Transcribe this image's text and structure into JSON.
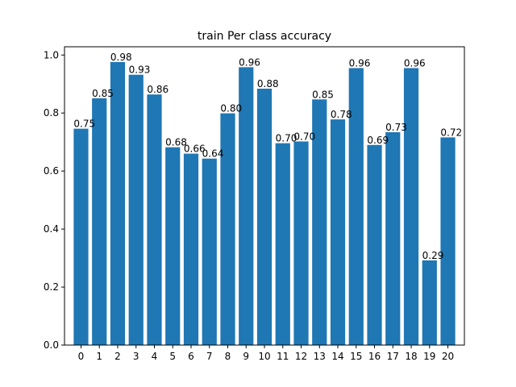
{
  "chart_data": {
    "type": "bar",
    "title": "train Per class accuracy",
    "xlabel": "",
    "ylabel": "",
    "categories": [
      "0",
      "1",
      "2",
      "3",
      "4",
      "5",
      "6",
      "7",
      "8",
      "9",
      "10",
      "11",
      "12",
      "13",
      "14",
      "15",
      "16",
      "17",
      "18",
      "19",
      "20"
    ],
    "values": [
      0.746,
      0.851,
      0.976,
      0.932,
      0.864,
      0.682,
      0.66,
      0.643,
      0.799,
      0.958,
      0.884,
      0.696,
      0.702,
      0.847,
      0.778,
      0.955,
      0.69,
      0.734,
      0.955,
      0.292,
      0.716
    ],
    "data_labels": [
      "0.75",
      "0.85",
      "0.98",
      "0.93",
      "0.86",
      "0.68",
      "0.66",
      "0.64",
      "0.80",
      "0.96",
      "0.88",
      "0.70",
      "0.70",
      "0.85",
      "0.78",
      "0.96",
      "0.69",
      "0.73",
      "0.96",
      "0.29",
      "0.72"
    ],
    "ylim": [
      0,
      1.0285
    ],
    "yticks": [
      0.0,
      0.2,
      0.4,
      0.6,
      0.8,
      1.0
    ],
    "ytick_labels": [
      "0.0",
      "0.2",
      "0.4",
      "0.6",
      "0.8",
      "1.0"
    ],
    "bar_color": "#1f77b4",
    "grid": false,
    "legend": "none"
  }
}
